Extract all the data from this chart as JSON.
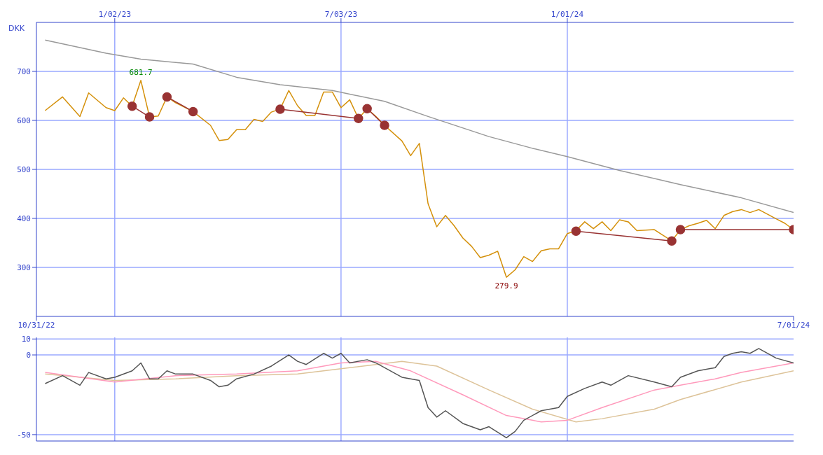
{
  "chart_data": [
    {
      "type": "line",
      "ylabel": "DKK",
      "xlim": [
        "2022-10-31",
        "2024-07-01"
      ],
      "xticks": [
        {
          "value": "2022-10-31",
          "label": "10/31/22"
        },
        {
          "value": "2024-07-01",
          "label": "7/01/24"
        }
      ],
      "x2lim": [
        "2022-10-31",
        "2024-07-01"
      ],
      "x2ticks": [
        {
          "value": "2023-01-02",
          "label": "1/02/23"
        },
        {
          "value": "2023-07-03",
          "label": "7/03/23"
        },
        {
          "value": "2024-01-01",
          "label": "1/01/24"
        }
      ],
      "ylim": [
        200,
        800
      ],
      "yticks": [
        300,
        400,
        500,
        600,
        700
      ],
      "grid": true,
      "marker": "none",
      "annotations": [
        {
          "text": "681.7",
          "x": "2023-01-23",
          "y": 681.7
        },
        {
          "text": "279.9",
          "x": "2023-11-13",
          "y": 279.9
        }
      ],
      "series": [
        {
          "color": "#999999",
          "x": [
            "2022-11-07",
            "2022-12-26",
            "2023-01-23",
            "2023-03-06",
            "2023-04-10",
            "2023-05-15",
            "2023-06-26",
            "2023-08-07",
            "2023-09-11",
            "2023-10-30",
            "2023-12-04",
            "2024-01-01",
            "2024-02-12",
            "2024-04-01",
            "2024-05-20",
            "2024-07-01"
          ],
          "values": [
            764,
            737,
            725,
            715,
            688,
            673,
            661,
            639,
            608,
            567,
            543,
            526,
            498,
            469,
            442,
            412
          ]
        },
        {
          "color": "#d4900a",
          "x": [
            "2022-11-07",
            "2022-11-21",
            "2022-12-05",
            "2022-12-12",
            "2022-12-26",
            "2023-01-02",
            "2023-01-09",
            "2023-01-16",
            "2023-01-23",
            "2023-01-30",
            "2023-02-06",
            "2023-02-13",
            "2023-02-20",
            "2023-03-06",
            "2023-03-20",
            "2023-03-27",
            "2023-04-03",
            "2023-04-10",
            "2023-04-17",
            "2023-04-24",
            "2023-05-01",
            "2023-05-08",
            "2023-05-15",
            "2023-05-22",
            "2023-05-29",
            "2023-06-05",
            "2023-06-12",
            "2023-06-19",
            "2023-06-26",
            "2023-07-03",
            "2023-07-10",
            "2023-07-17",
            "2023-07-24",
            "2023-07-31",
            "2023-08-07",
            "2023-08-21",
            "2023-08-28",
            "2023-09-04",
            "2023-09-11",
            "2023-09-18",
            "2023-09-25",
            "2023-10-02",
            "2023-10-09",
            "2023-10-16",
            "2023-10-23",
            "2023-10-30",
            "2023-11-06",
            "2023-11-13",
            "2023-11-20",
            "2023-11-27",
            "2023-12-04",
            "2023-12-11",
            "2023-12-18",
            "2023-12-25",
            "2024-01-01",
            "2024-01-08",
            "2024-01-15",
            "2024-01-22",
            "2024-01-29",
            "2024-02-05",
            "2024-02-12",
            "2024-02-19",
            "2024-02-26",
            "2024-03-11",
            "2024-03-25",
            "2024-04-01",
            "2024-04-08",
            "2024-04-15",
            "2024-04-22",
            "2024-04-29",
            "2024-05-06",
            "2024-05-13",
            "2024-05-20",
            "2024-05-27",
            "2024-06-03",
            "2024-06-17",
            "2024-06-24",
            "2024-07-01"
          ],
          "values": [
            620,
            648,
            608,
            656,
            626,
            620,
            646,
            629,
            681.7,
            607,
            609,
            648,
            636,
            618,
            590,
            559,
            561,
            581,
            581,
            602,
            598,
            617,
            623,
            661,
            630,
            610,
            610,
            658,
            658,
            626,
            642,
            604,
            624,
            608,
            590,
            558,
            528,
            553,
            430,
            383,
            406,
            385,
            360,
            343,
            320,
            325,
            333,
            279.9,
            295,
            322,
            312,
            334,
            338,
            338,
            369,
            375,
            393,
            379,
            393,
            375,
            397,
            393,
            375,
            377,
            354,
            377,
            385,
            390,
            396,
            379,
            406,
            414,
            418,
            412,
            418,
            399,
            390,
            377
          ]
        },
        {
          "color": "#993333",
          "marker": "circle",
          "x": [
            "2023-01-16",
            "2023-01-30",
            "2023-02-06",
            "2023-02-13",
            "2023-03-06",
            "2023-04-10",
            "2023-05-15",
            "2023-07-17",
            "2023-07-20",
            "2023-07-24",
            "2023-08-07",
            "2023-10-01",
            "2024-01-08",
            "2024-03-25",
            "2024-03-28",
            "2024-04-01",
            "2024-07-01"
          ],
          "values": [
            629,
            607,
            null,
            648,
            618,
            null,
            623,
            604,
            null,
            624,
            590,
            null,
            374,
            354,
            null,
            377,
            377
          ]
        }
      ]
    },
    {
      "type": "line",
      "xlim": [
        "2022-10-31",
        "2024-07-01"
      ],
      "xticks": [
        {
          "value": "2023-01-02",
          "label": null
        },
        {
          "value": "2023-07-03",
          "label": null
        },
        {
          "value": "2024-01-01",
          "label": null
        }
      ],
      "ylim": [
        -54,
        11
      ],
      "yticks": [
        10,
        0,
        -50
      ],
      "grid": true,
      "tick_labels": "y",
      "marker": "none",
      "series": [
        {
          "color": "#ddc399",
          "x": [
            "2022-11-07",
            "2023-01-02",
            "2023-02-20",
            "2023-04-10",
            "2023-05-29",
            "2023-07-10",
            "2023-08-21",
            "2023-09-18",
            "2023-10-30",
            "2023-12-04",
            "2024-01-08",
            "2024-01-29",
            "2024-03-11",
            "2024-04-01",
            "2024-05-20",
            "2024-07-01"
          ],
          "values": [
            -12,
            -16,
            -15,
            -13,
            -12,
            -8,
            -4,
            -7,
            -22,
            -34,
            -42,
            -40,
            -34,
            -28,
            -17,
            -10
          ]
        },
        {
          "color": "#ff99bb",
          "x": [
            "2022-11-07",
            "2023-01-02",
            "2023-02-20",
            "2023-04-10",
            "2023-05-29",
            "2023-07-03",
            "2023-07-31",
            "2023-08-28",
            "2023-10-09",
            "2023-11-13",
            "2023-12-11",
            "2024-01-01",
            "2024-01-29",
            "2024-03-11",
            "2024-04-01",
            "2024-04-29",
            "2024-05-20",
            "2024-07-01"
          ],
          "values": [
            -11,
            -17,
            -13,
            -12,
            -10,
            -5,
            -4,
            -10,
            -25,
            -38,
            -42,
            -41,
            -33,
            -22,
            -19,
            -15,
            -11,
            -5
          ]
        },
        {
          "color": "#555555",
          "x": [
            "2022-11-07",
            "2022-11-21",
            "2022-12-05",
            "2022-12-12",
            "2022-12-26",
            "2023-01-02",
            "2023-01-16",
            "2023-01-23",
            "2023-01-30",
            "2023-02-06",
            "2023-02-13",
            "2023-02-20",
            "2023-03-06",
            "2023-03-20",
            "2023-03-27",
            "2023-04-03",
            "2023-04-10",
            "2023-04-24",
            "2023-05-08",
            "2023-05-22",
            "2023-05-29",
            "2023-06-05",
            "2023-06-19",
            "2023-06-26",
            "2023-07-03",
            "2023-07-10",
            "2023-07-24",
            "2023-07-31",
            "2023-08-21",
            "2023-09-04",
            "2023-09-11",
            "2023-09-18",
            "2023-09-25",
            "2023-10-09",
            "2023-10-23",
            "2023-10-30",
            "2023-11-13",
            "2023-11-20",
            "2023-11-27",
            "2023-12-11",
            "2023-12-25",
            "2024-01-01",
            "2024-01-15",
            "2024-01-29",
            "2024-02-05",
            "2024-02-19",
            "2024-03-11",
            "2024-03-25",
            "2024-04-01",
            "2024-04-15",
            "2024-04-29",
            "2024-05-06",
            "2024-05-13",
            "2024-05-20",
            "2024-05-27",
            "2024-06-03",
            "2024-06-17",
            "2024-07-01"
          ],
          "values": [
            -18,
            -13,
            -19,
            -11,
            -15,
            -14,
            -10,
            -5,
            -15,
            -15,
            -10,
            -12,
            -12,
            -16,
            -20,
            -19,
            -15,
            -12,
            -7,
            0,
            -4,
            -6,
            1,
            -2,
            1,
            -5,
            -3,
            -5,
            -14,
            -16,
            -33,
            -39,
            -35,
            -43,
            -47,
            -45,
            -52,
            -48,
            -41,
            -35,
            -33,
            -26,
            -21,
            -17,
            -19,
            -13,
            -17,
            -20,
            -14,
            -10,
            -8,
            -1,
            1,
            2,
            1,
            4,
            -2,
            -5
          ]
        }
      ]
    }
  ]
}
